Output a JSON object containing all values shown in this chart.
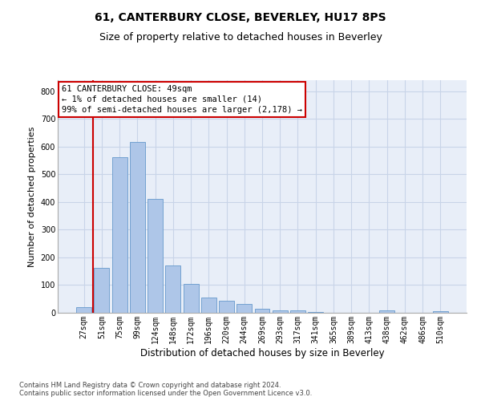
{
  "title": "61, CANTERBURY CLOSE, BEVERLEY, HU17 8PS",
  "subtitle": "Size of property relative to detached houses in Beverley",
  "xlabel": "Distribution of detached houses by size in Beverley",
  "ylabel": "Number of detached properties",
  "bar_values": [
    20,
    163,
    563,
    617,
    412,
    171,
    104,
    55,
    43,
    33,
    15,
    10,
    9,
    3,
    0,
    0,
    0,
    8,
    0,
    0,
    7
  ],
  "bar_labels": [
    "27sqm",
    "51sqm",
    "75sqm",
    "99sqm",
    "124sqm",
    "148sqm",
    "172sqm",
    "196sqm",
    "220sqm",
    "244sqm",
    "269sqm",
    "293sqm",
    "317sqm",
    "341sqm",
    "365sqm",
    "389sqm",
    "413sqm",
    "438sqm",
    "462sqm",
    "486sqm",
    "510sqm"
  ],
  "bar_color": "#aec6e8",
  "bar_edge_color": "#6699cc",
  "annotation_text": "61 CANTERBURY CLOSE: 49sqm\n← 1% of detached houses are smaller (14)\n99% of semi-detached houses are larger (2,178) →",
  "annotation_color": "#cc0000",
  "red_line_x": 0.42,
  "ylim": [
    0,
    840
  ],
  "yticks": [
    0,
    100,
    200,
    300,
    400,
    500,
    600,
    700,
    800
  ],
  "grid_color": "#c8d4e8",
  "background_color": "#e8eef8",
  "footer": "Contains HM Land Registry data © Crown copyright and database right 2024.\nContains public sector information licensed under the Open Government Licence v3.0.",
  "title_fontsize": 10,
  "subtitle_fontsize": 9,
  "xlabel_fontsize": 8.5,
  "ylabel_fontsize": 8,
  "tick_fontsize": 7,
  "annotation_fontsize": 7.5,
  "footer_fontsize": 6
}
